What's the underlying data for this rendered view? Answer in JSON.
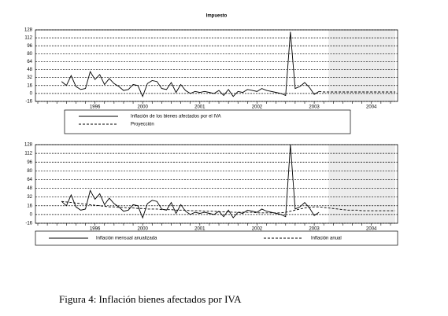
{
  "chart_data": [
    {
      "type": "line",
      "title": "Impuesto",
      "categories": [
        null,
        null,
        null,
        null,
        null,
        null,
        null,
        null,
        null,
        null,
        null,
        null,
        "1996",
        null,
        null,
        null,
        null,
        null,
        null,
        null,
        null,
        null,
        "2000",
        null,
        null,
        null,
        null,
        null,
        null,
        null,
        null,
        null,
        null,
        null,
        "2001",
        null,
        null,
        null,
        null,
        null,
        null,
        null,
        null,
        null,
        null,
        null,
        "2002",
        null,
        null,
        null,
        null,
        null,
        null,
        null,
        null,
        null,
        null,
        null,
        "2003",
        null,
        null,
        null,
        null,
        null,
        null,
        null,
        null,
        null,
        null,
        null,
        "2004",
        null,
        null,
        null,
        null,
        null
      ],
      "series": [
        {
          "name": "Inflación de los bienes afectados por el IVA",
          "color": "#000000",
          "style": "solid",
          "values": [
            null,
            null,
            null,
            null,
            null,
            24,
            16,
            36,
            14,
            8,
            10,
            44,
            28,
            38,
            18,
            30,
            20,
            14,
            6,
            8,
            18,
            16,
            -6,
            20,
            26,
            24,
            10,
            8,
            22,
            2,
            18,
            6,
            0,
            4,
            2,
            4,
            2,
            0,
            6,
            -4,
            8,
            -6,
            4,
            2,
            8,
            6,
            4,
            10,
            6,
            4,
            2,
            0,
            -4,
            124,
            10,
            14,
            22,
            12,
            -2,
            4,
            null,
            null,
            null,
            null,
            null,
            null,
            null,
            null,
            null,
            null,
            null,
            null,
            null,
            null,
            null,
            null
          ]
        },
        {
          "name": "Proyección",
          "color": "#000000",
          "style": "dashed",
          "values": [
            null,
            null,
            null,
            null,
            null,
            null,
            null,
            null,
            null,
            null,
            null,
            null,
            null,
            null,
            null,
            null,
            null,
            null,
            null,
            null,
            null,
            null,
            null,
            null,
            null,
            null,
            null,
            null,
            null,
            null,
            null,
            null,
            null,
            null,
            null,
            null,
            null,
            null,
            null,
            null,
            null,
            null,
            null,
            null,
            null,
            null,
            null,
            null,
            null,
            null,
            null,
            null,
            null,
            null,
            null,
            null,
            null,
            null,
            null,
            4,
            3,
            3,
            3,
            3,
            3,
            3,
            3,
            3,
            3,
            3,
            3,
            3,
            3,
            3,
            3,
            3
          ]
        }
      ],
      "ylim": [
        -16,
        128
      ],
      "yticks": [
        -16,
        0,
        16,
        32,
        48,
        64,
        80,
        96,
        112,
        128
      ],
      "grid": true,
      "shaded_range": [
        61,
        75
      ],
      "legend": "below"
    },
    {
      "type": "line",
      "categories": [
        null,
        null,
        null,
        null,
        null,
        null,
        null,
        null,
        null,
        null,
        null,
        null,
        "1996",
        null,
        null,
        null,
        null,
        null,
        null,
        null,
        null,
        null,
        "2000",
        null,
        null,
        null,
        null,
        null,
        null,
        null,
        null,
        null,
        null,
        null,
        "2001",
        null,
        null,
        null,
        null,
        null,
        null,
        null,
        null,
        null,
        null,
        null,
        "2002",
        null,
        null,
        null,
        null,
        null,
        null,
        null,
        null,
        null,
        null,
        null,
        "2003",
        null,
        null,
        null,
        null,
        null,
        null,
        null,
        null,
        null,
        null,
        null,
        "2004",
        null,
        null,
        null,
        null,
        null
      ],
      "series": [
        {
          "name": "Inflación mensual anualizada",
          "color": "#000000",
          "style": "solid",
          "values": [
            null,
            null,
            null,
            null,
            null,
            24,
            16,
            36,
            14,
            8,
            10,
            44,
            28,
            38,
            18,
            30,
            20,
            14,
            6,
            8,
            18,
            16,
            -6,
            20,
            26,
            24,
            10,
            8,
            22,
            2,
            18,
            6,
            0,
            4,
            2,
            4,
            2,
            0,
            6,
            -4,
            8,
            -6,
            4,
            2,
            8,
            6,
            4,
            10,
            6,
            4,
            2,
            0,
            -4,
            128,
            10,
            14,
            22,
            12,
            -2,
            4,
            null,
            null,
            null,
            null,
            null,
            null,
            null,
            null,
            null,
            null,
            null,
            null,
            null,
            null,
            null,
            null
          ]
        },
        {
          "name": "Inflación anual",
          "color": "#000000",
          "style": "dashed",
          "values": [
            null,
            null,
            null,
            null,
            null,
            24,
            23,
            22,
            21,
            20,
            19,
            18,
            17,
            16,
            15,
            14,
            14,
            13,
            13,
            12,
            12,
            11,
            11,
            10,
            10,
            10,
            9,
            9,
            9,
            8,
            8,
            8,
            7,
            7,
            7,
            6,
            6,
            6,
            5,
            5,
            5,
            4,
            4,
            4,
            4,
            4,
            3,
            3,
            3,
            3,
            3,
            3,
            4,
            6,
            8,
            10,
            12,
            13,
            14,
            14,
            13,
            12,
            11,
            10,
            9,
            8,
            8,
            8,
            7,
            7,
            7,
            7,
            7,
            7,
            7,
            7
          ]
        }
      ],
      "ylim": [
        -16,
        128
      ],
      "yticks": [
        -16,
        0,
        16,
        32,
        48,
        64,
        80,
        96,
        112,
        128
      ],
      "grid": true,
      "shaded_range": [
        61,
        75
      ],
      "legend": "below"
    }
  ],
  "caption": "Figura 4: Inflación bienes afectados por IVA"
}
